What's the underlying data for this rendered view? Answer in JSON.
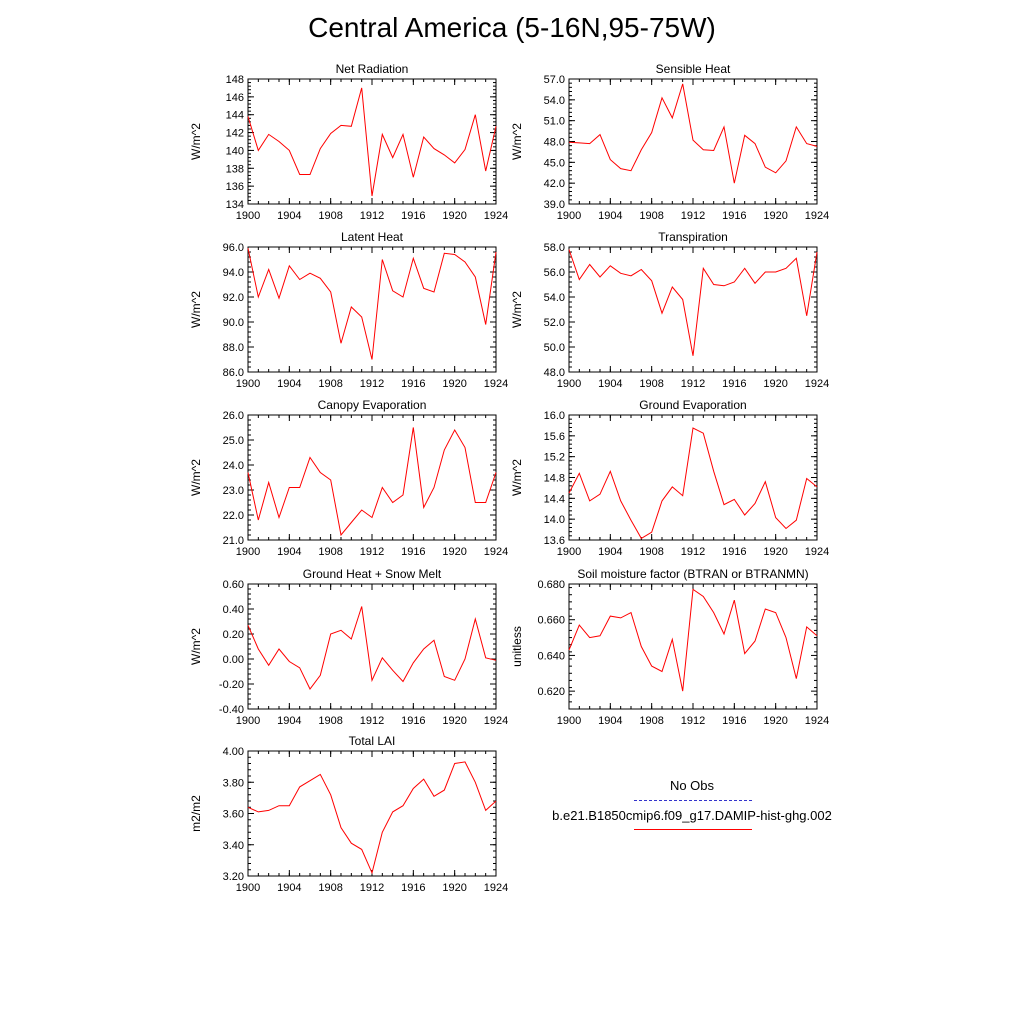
{
  "title": "Central America (5-16N,95-75W)",
  "legend": {
    "obs_label": "No Obs",
    "case_label": "b.e21.B1850cmip6.f09_g17.DAMIP-hist-ghg.002",
    "obs_color": "#3333cc",
    "case_color": "#ff0000"
  },
  "chart_data": [
    {
      "type": "line",
      "title": "Net Radiation",
      "ylabel": "W/m^2",
      "ylim": [
        134,
        148
      ],
      "yticks": [
        "134",
        "136",
        "138",
        "140",
        "142",
        "144",
        "146",
        "148"
      ],
      "xlim": [
        1900,
        1924
      ],
      "xticks": [
        "1900",
        "1904",
        "1908",
        "1912",
        "1916",
        "1920",
        "1924"
      ],
      "series": [
        {
          "color": "#ff0000",
          "x": [
            1900,
            1901,
            1902,
            1903,
            1904,
            1905,
            1906,
            1907,
            1908,
            1909,
            1910,
            1911,
            1912,
            1913,
            1914,
            1915,
            1916,
            1917,
            1918,
            1919,
            1920,
            1921,
            1922,
            1923,
            1924
          ],
          "values": [
            143.8,
            140.0,
            141.8,
            141.0,
            140.0,
            137.3,
            137.3,
            140.2,
            141.9,
            142.8,
            142.7,
            147.0,
            134.9,
            141.8,
            139.2,
            141.8,
            137.0,
            141.5,
            140.2,
            139.5,
            138.6,
            140.1,
            144.0,
            137.7,
            142.7
          ]
        }
      ]
    },
    {
      "type": "line",
      "title": "Sensible Heat",
      "ylabel": "W/m^2",
      "ylim": [
        39.0,
        57.0
      ],
      "yticks": [
        "39.0",
        "42.0",
        "45.0",
        "48.0",
        "51.0",
        "54.0",
        "57.0"
      ],
      "xlim": [
        1900,
        1924
      ],
      "xticks": [
        "1900",
        "1904",
        "1908",
        "1912",
        "1916",
        "1920",
        "1924"
      ],
      "series": [
        {
          "color": "#ff0000",
          "x": [
            1900,
            1901,
            1902,
            1903,
            1904,
            1905,
            1906,
            1907,
            1908,
            1909,
            1910,
            1911,
            1912,
            1913,
            1914,
            1915,
            1916,
            1917,
            1918,
            1919,
            1920,
            1921,
            1922,
            1923,
            1924
          ],
          "values": [
            47.9,
            47.8,
            47.7,
            49.0,
            45.4,
            44.1,
            43.8,
            46.8,
            49.3,
            54.3,
            51.4,
            56.3,
            48.2,
            46.8,
            46.7,
            50.1,
            42.0,
            48.9,
            47.7,
            44.3,
            43.5,
            45.2,
            50.1,
            47.7,
            47.3
          ]
        }
      ]
    },
    {
      "type": "line",
      "title": "Latent Heat",
      "ylabel": "W/m^2",
      "ylim": [
        86.0,
        96.0
      ],
      "yticks": [
        "86.0",
        "88.0",
        "90.0",
        "92.0",
        "94.0",
        "96.0"
      ],
      "xlim": [
        1900,
        1924
      ],
      "xticks": [
        "1900",
        "1904",
        "1908",
        "1912",
        "1916",
        "1920",
        "1924"
      ],
      "series": [
        {
          "color": "#ff0000",
          "x": [
            1900,
            1901,
            1902,
            1903,
            1904,
            1905,
            1906,
            1907,
            1908,
            1909,
            1910,
            1911,
            1912,
            1913,
            1914,
            1915,
            1916,
            1917,
            1918,
            1919,
            1920,
            1921,
            1922,
            1923,
            1924
          ],
          "values": [
            95.9,
            92.0,
            94.2,
            91.9,
            94.5,
            93.4,
            93.9,
            93.5,
            92.4,
            88.3,
            91.2,
            90.4,
            87.0,
            95.0,
            92.5,
            92.0,
            95.1,
            92.7,
            92.4,
            95.5,
            95.4,
            94.8,
            93.6,
            89.8,
            95.6
          ]
        }
      ]
    },
    {
      "type": "line",
      "title": "Transpiration",
      "ylabel": "W/m^2",
      "ylim": [
        48.0,
        58.0
      ],
      "yticks": [
        "48.0",
        "50.0",
        "52.0",
        "54.0",
        "56.0",
        "58.0"
      ],
      "xlim": [
        1900,
        1924
      ],
      "xticks": [
        "1900",
        "1904",
        "1908",
        "1912",
        "1916",
        "1920",
        "1924"
      ],
      "series": [
        {
          "color": "#ff0000",
          "x": [
            1900,
            1901,
            1902,
            1903,
            1904,
            1905,
            1906,
            1907,
            1908,
            1909,
            1910,
            1911,
            1912,
            1913,
            1914,
            1915,
            1916,
            1917,
            1918,
            1919,
            1920,
            1921,
            1922,
            1923,
            1924
          ],
          "values": [
            57.8,
            55.4,
            56.6,
            55.6,
            56.5,
            55.9,
            55.7,
            56.2,
            55.3,
            52.7,
            54.8,
            53.8,
            49.3,
            56.3,
            55.0,
            54.9,
            55.2,
            56.3,
            55.1,
            56.0,
            56.0,
            56.3,
            57.1,
            52.5,
            57.6
          ]
        }
      ]
    },
    {
      "type": "line",
      "title": "Canopy Evaporation",
      "ylabel": "W/m^2",
      "ylim": [
        21.0,
        26.0
      ],
      "yticks": [
        "21.0",
        "22.0",
        "23.0",
        "24.0",
        "25.0",
        "26.0"
      ],
      "xlim": [
        1900,
        1924
      ],
      "xticks": [
        "1900",
        "1904",
        "1908",
        "1912",
        "1916",
        "1920",
        "1924"
      ],
      "series": [
        {
          "color": "#ff0000",
          "x": [
            1900,
            1901,
            1902,
            1903,
            1904,
            1905,
            1906,
            1907,
            1908,
            1909,
            1910,
            1911,
            1912,
            1913,
            1914,
            1915,
            1916,
            1917,
            1918,
            1919,
            1920,
            1921,
            1922,
            1923,
            1924
          ],
          "values": [
            23.7,
            21.8,
            23.3,
            21.9,
            23.1,
            23.1,
            24.3,
            23.7,
            23.4,
            21.2,
            21.7,
            22.2,
            21.9,
            23.1,
            22.5,
            22.8,
            25.5,
            22.3,
            23.1,
            24.6,
            25.4,
            24.7,
            22.5,
            22.5,
            23.7
          ]
        }
      ]
    },
    {
      "type": "line",
      "title": "Ground Evaporation",
      "ylabel": "W/m^2",
      "ylim": [
        13.6,
        16.0
      ],
      "yticks": [
        "13.6",
        "14.0",
        "14.4",
        "14.8",
        "15.2",
        "15.6",
        "16.0"
      ],
      "xlim": [
        1900,
        1924
      ],
      "xticks": [
        "1900",
        "1904",
        "1908",
        "1912",
        "1916",
        "1920",
        "1924"
      ],
      "series": [
        {
          "color": "#ff0000",
          "x": [
            1900,
            1901,
            1902,
            1903,
            1904,
            1905,
            1906,
            1907,
            1908,
            1909,
            1910,
            1911,
            1912,
            1913,
            1914,
            1915,
            1916,
            1917,
            1918,
            1919,
            1920,
            1921,
            1922,
            1923,
            1924
          ],
          "values": [
            14.5,
            14.88,
            14.35,
            14.48,
            14.92,
            14.35,
            13.98,
            13.63,
            13.75,
            14.35,
            14.62,
            14.45,
            15.75,
            15.65,
            14.92,
            14.28,
            14.38,
            14.08,
            14.3,
            14.72,
            14.03,
            13.82,
            13.98,
            14.78,
            14.62
          ]
        }
      ]
    },
    {
      "type": "line",
      "title": "Ground Heat + Snow Melt",
      "ylabel": "W/m^2",
      "ylim": [
        -0.4,
        0.6
      ],
      "yticks": [
        "-0.40",
        "-0.20",
        "0.00",
        "0.20",
        "0.40",
        "0.60"
      ],
      "xlim": [
        1900,
        1924
      ],
      "xticks": [
        "1900",
        "1904",
        "1908",
        "1912",
        "1916",
        "1920",
        "1924"
      ],
      "series": [
        {
          "color": "#ff0000",
          "x": [
            1900,
            1901,
            1902,
            1903,
            1904,
            1905,
            1906,
            1907,
            1908,
            1909,
            1910,
            1911,
            1912,
            1913,
            1914,
            1915,
            1916,
            1917,
            1918,
            1919,
            1920,
            1921,
            1922,
            1923,
            1924
          ],
          "values": [
            0.27,
            0.08,
            -0.05,
            0.08,
            -0.02,
            -0.07,
            -0.24,
            -0.13,
            0.2,
            0.23,
            0.16,
            0.42,
            -0.17,
            0.01,
            -0.09,
            -0.18,
            -0.03,
            0.08,
            0.15,
            -0.14,
            -0.17,
            0.0,
            0.32,
            0.01,
            -0.01
          ]
        }
      ]
    },
    {
      "type": "line",
      "title": "Soil moisture factor (BTRAN or BTRANMN)",
      "ylabel": "unitless",
      "ylim": [
        0.61,
        0.68
      ],
      "yticks": [
        "0.620",
        "0.640",
        "0.660",
        "0.680"
      ],
      "xlim": [
        1900,
        1924
      ],
      "xticks": [
        "1900",
        "1904",
        "1908",
        "1912",
        "1916",
        "1920",
        "1924"
      ],
      "series": [
        {
          "color": "#ff0000",
          "x": [
            1900,
            1901,
            1902,
            1903,
            1904,
            1905,
            1906,
            1907,
            1908,
            1909,
            1910,
            1911,
            1912,
            1913,
            1914,
            1915,
            1916,
            1917,
            1918,
            1919,
            1920,
            1921,
            1922,
            1923,
            1924
          ],
          "values": [
            0.643,
            0.657,
            0.65,
            0.651,
            0.662,
            0.661,
            0.664,
            0.645,
            0.634,
            0.631,
            0.649,
            0.62,
            0.677,
            0.673,
            0.664,
            0.652,
            0.671,
            0.641,
            0.648,
            0.666,
            0.664,
            0.65,
            0.627,
            0.656,
            0.651
          ]
        }
      ]
    },
    {
      "type": "line",
      "title": "Total LAI",
      "ylabel": "m2/m2",
      "ylim": [
        3.2,
        4.0
      ],
      "yticks": [
        "3.20",
        "3.40",
        "3.60",
        "3.80",
        "4.00"
      ],
      "xlim": [
        1900,
        1924
      ],
      "xticks": [
        "1900",
        "1904",
        "1908",
        "1912",
        "1916",
        "1920",
        "1924"
      ],
      "series": [
        {
          "color": "#ff0000",
          "x": [
            1900,
            1901,
            1902,
            1903,
            1904,
            1905,
            1906,
            1907,
            1908,
            1909,
            1910,
            1911,
            1912,
            1913,
            1914,
            1915,
            1916,
            1917,
            1918,
            1919,
            1920,
            1921,
            1922,
            1923,
            1924
          ],
          "values": [
            3.64,
            3.61,
            3.62,
            3.65,
            3.65,
            3.77,
            3.81,
            3.85,
            3.72,
            3.51,
            3.41,
            3.37,
            3.22,
            3.48,
            3.61,
            3.65,
            3.76,
            3.82,
            3.71,
            3.75,
            3.92,
            3.93,
            3.8,
            3.62,
            3.68
          ]
        }
      ]
    }
  ]
}
